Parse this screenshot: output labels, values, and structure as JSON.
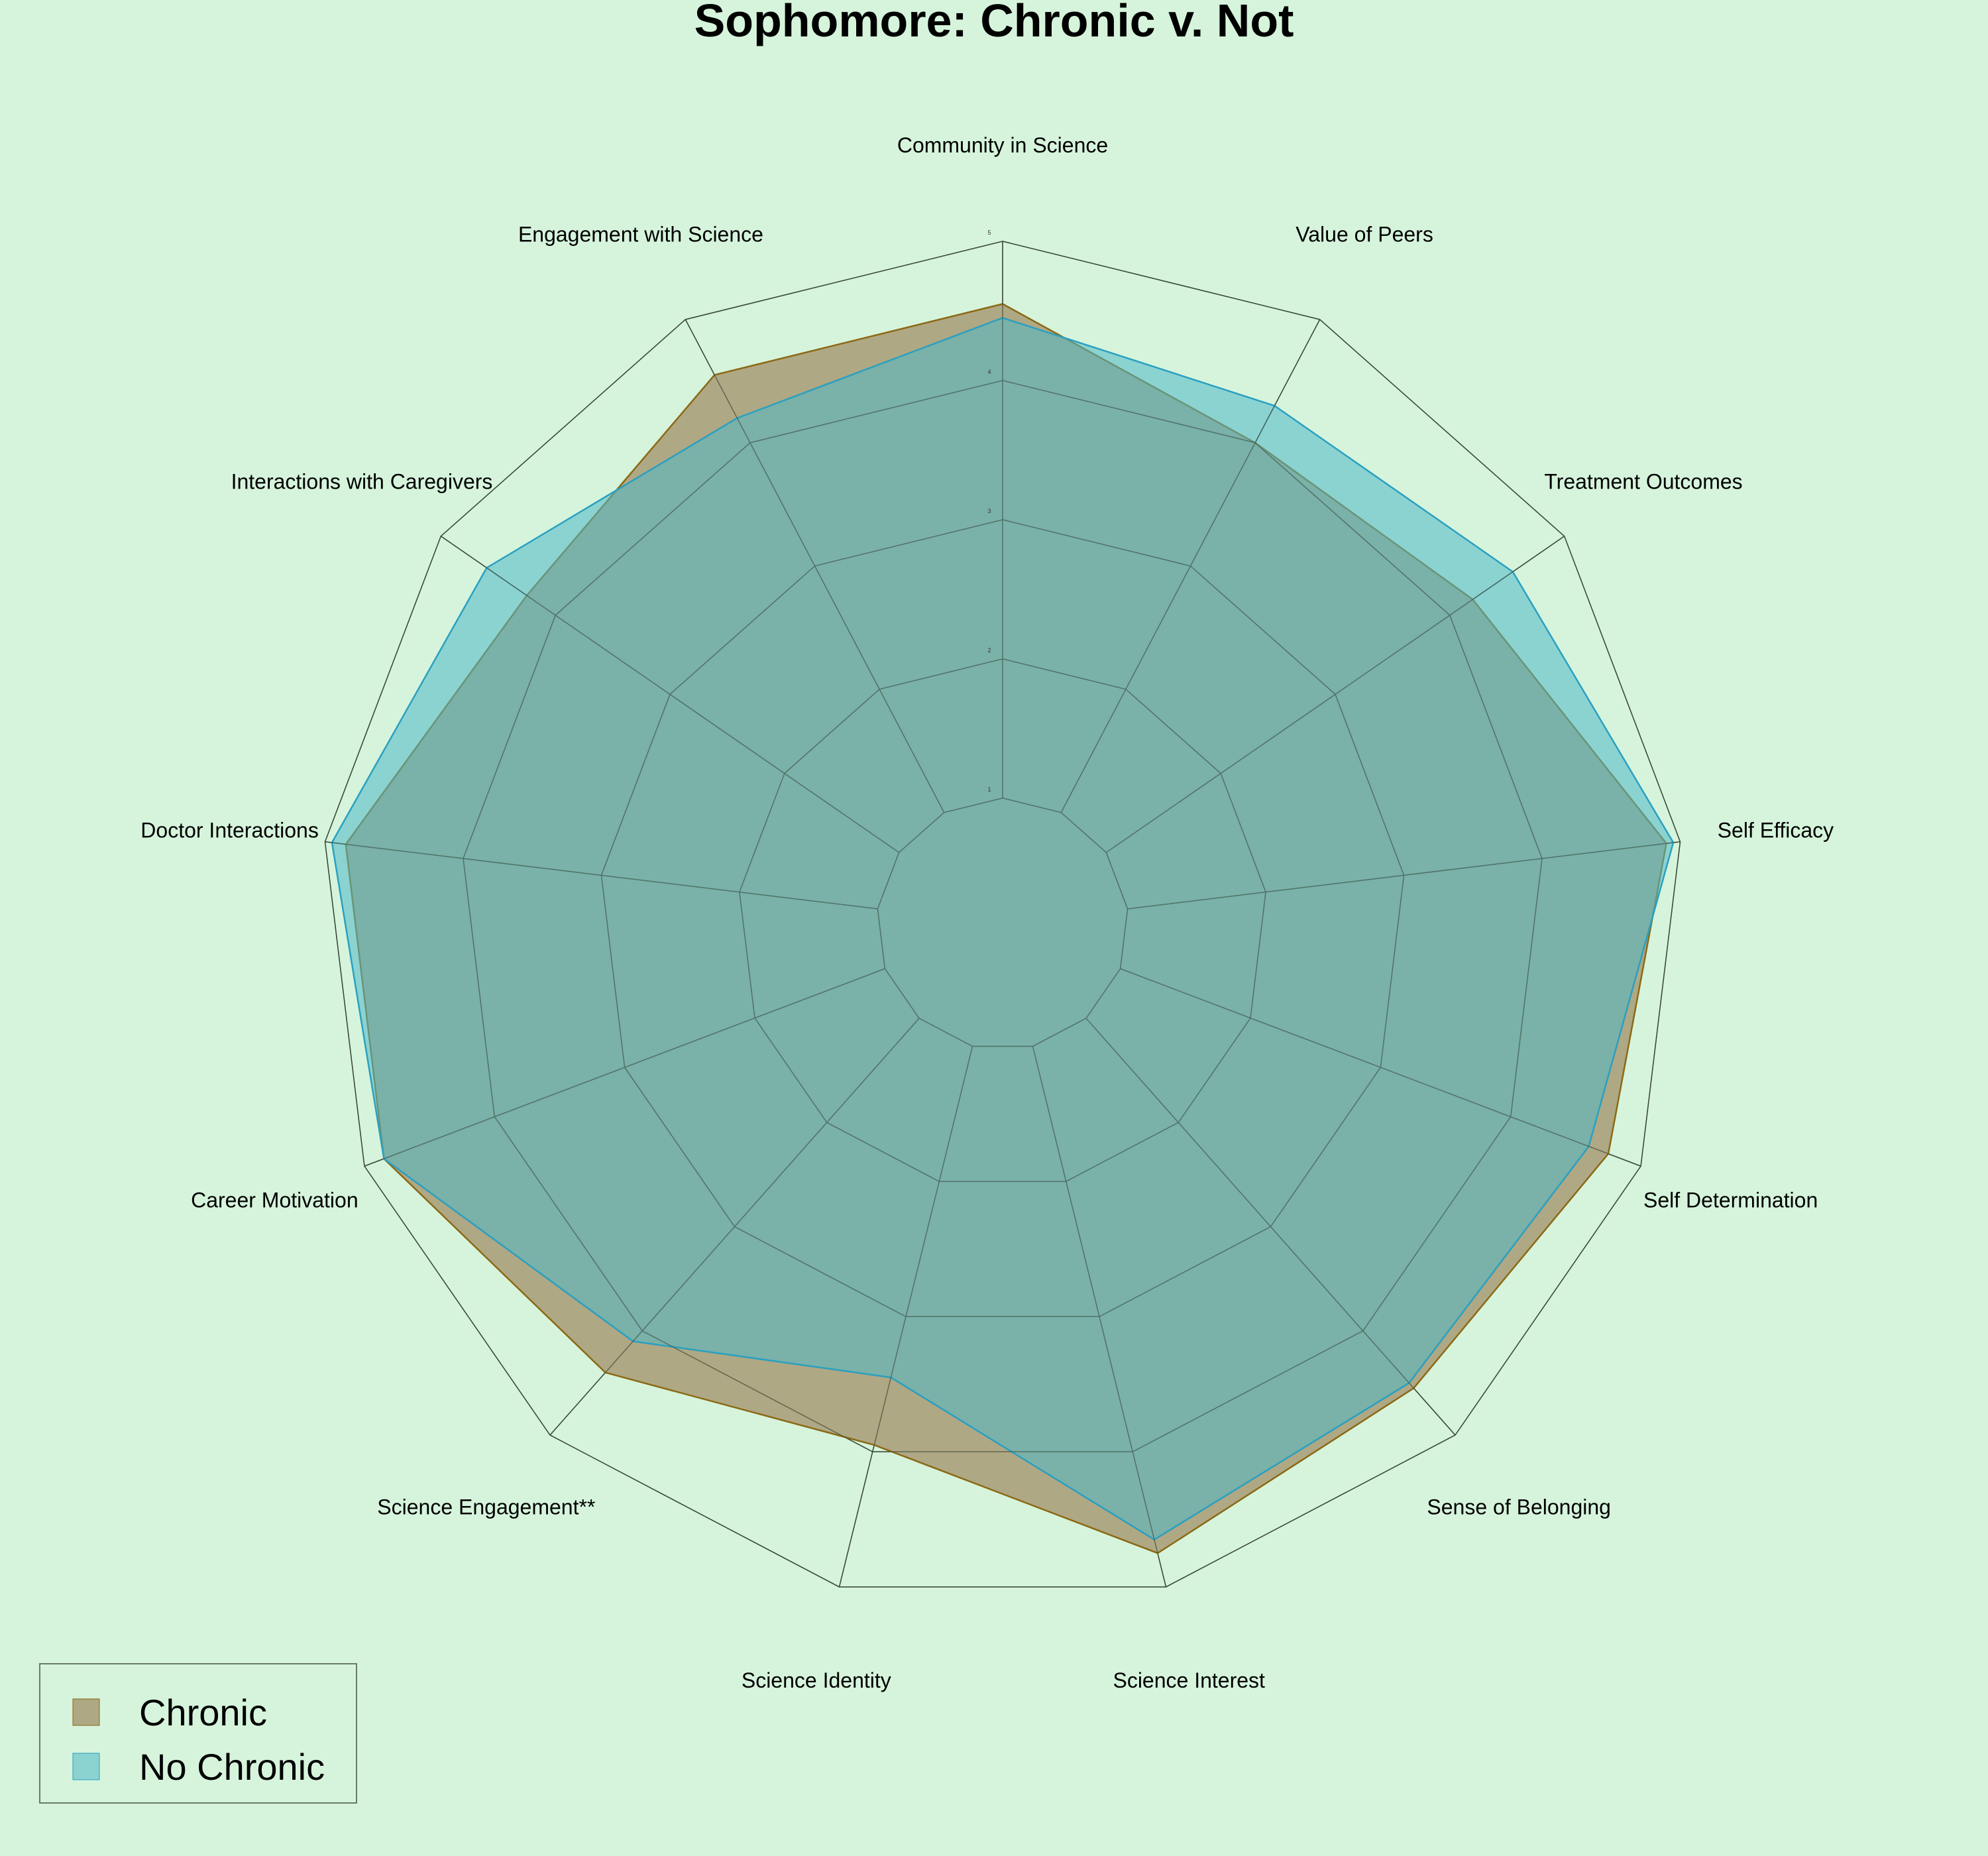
{
  "chart_data": {
    "type": "radar",
    "title": "Sophomore: Chronic v. Not",
    "axes": [
      "Community in Science",
      "Value of Peers",
      "Treatment Outcomes",
      "Self Efficacy",
      "Self Determination",
      "Sense of Belonging",
      "Science Interest",
      "Science Identity",
      "Science Engagement**",
      "Career Motivation",
      "Doctor Interactions",
      "Interactions with Caregivers",
      "Engagement with Science"
    ],
    "rlim": [
      1,
      5
    ],
    "ticks": [
      1,
      2,
      3,
      4,
      5
    ],
    "tick_labels": [
      "1",
      "2",
      "3",
      "4",
      "5"
    ],
    "grid": true,
    "series": [
      {
        "name": "Chronic",
        "color": "#8b6914",
        "fill": "#a89a74",
        "values": [
          4.55,
          4.0,
          4.2,
          4.9,
          4.75,
          4.55,
          4.75,
          3.95,
          4.4,
          4.85,
          4.85,
          4.25,
          4.55
        ]
      },
      {
        "name": "No Chronic",
        "color": "#2aa0c0",
        "fill": "#4fb8c8",
        "values": [
          4.45,
          4.3,
          4.55,
          4.95,
          4.6,
          4.5,
          4.65,
          3.45,
          4.1,
          4.85,
          4.95,
          4.6,
          4.2
        ]
      }
    ],
    "legend": {
      "position": "bottom-left",
      "entries": [
        "Chronic",
        "No Chronic"
      ]
    }
  }
}
